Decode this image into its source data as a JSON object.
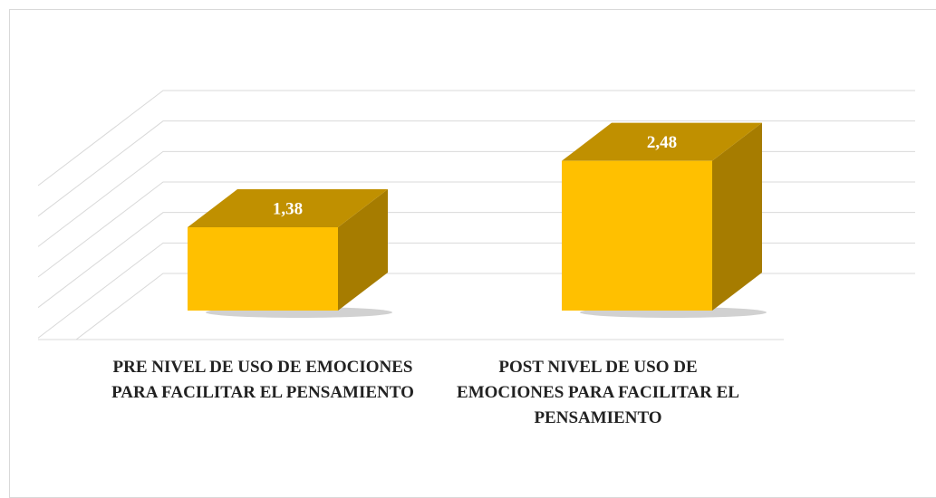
{
  "chart_data": {
    "type": "bar3d",
    "categories": [
      "PRE NIVEL DE USO DE EMOCIONES PARA FACILITAR EL PENSAMIENTO",
      "POST NIVEL DE USO DE EMOCIONES PARA FACILITAR EL PENSAMIENTO"
    ],
    "values": [
      1.38,
      2.48
    ],
    "value_labels": [
      "1,38",
      "2,48"
    ],
    "color": "#ffc000",
    "ylim": [
      0,
      3
    ],
    "yticks": [
      0,
      0.5,
      1,
      1.5,
      2,
      2.5,
      3
    ],
    "grid": true
  }
}
